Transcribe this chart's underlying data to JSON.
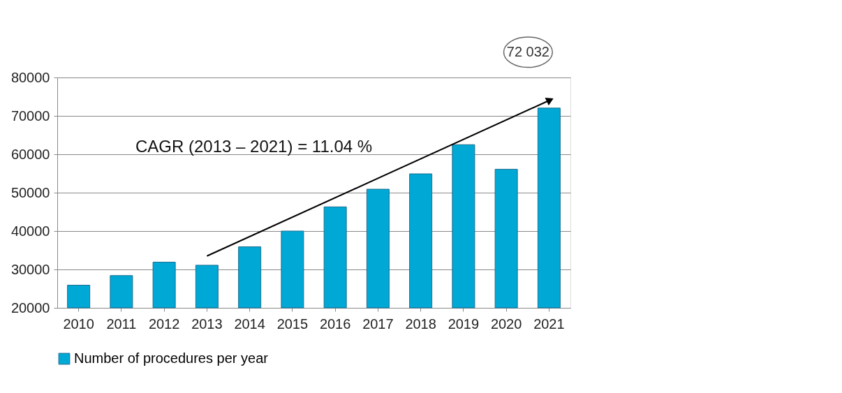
{
  "chart_data": {
    "type": "bar",
    "categories": [
      "2010",
      "2011",
      "2012",
      "2013",
      "2014",
      "2015",
      "2016",
      "2017",
      "2018",
      "2019",
      "2020",
      "2021"
    ],
    "series": [
      {
        "name": "Number of procedures per year",
        "color": "#00a8d6",
        "values": [
          25900,
          28400,
          31900,
          31100,
          35900,
          40000,
          46300,
          50900,
          54900,
          62500,
          56100,
          72032
        ]
      },
      {
        "type": "line",
        "color": "#000000",
        "values": [
          null,
          null,
          null,
          33500,
          null,
          null,
          null,
          null,
          null,
          null,
          null,
          74000
        ],
        "marker": "triangle"
      }
    ],
    "value_labels": [
      null,
      null,
      null,
      null,
      null,
      null,
      null,
      null,
      null,
      null,
      null,
      "72 032"
    ],
    "annotations": [
      "CAGR (2013 – 2021) = 11.04 %"
    ],
    "ylim": [
      20000,
      80000
    ],
    "yticks": [
      20000,
      30000,
      40000,
      50000,
      60000,
      70000,
      80000
    ],
    "grid": "y",
    "legend": "bottom"
  }
}
